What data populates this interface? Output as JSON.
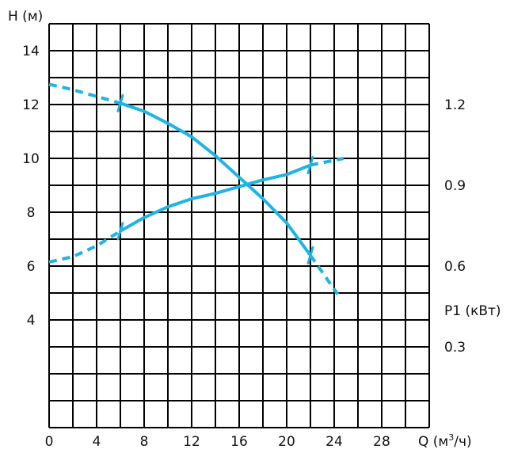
{
  "chart_data": {
    "type": "line",
    "colors": {
      "curve": "#1eb4e6",
      "grid": "#000000"
    },
    "grid": true,
    "x_axis": {
      "label": "Q (м³/ч)",
      "label_prefix": "Q (м",
      "label_sup": "3",
      "label_suffix": "/ч)",
      "range": [
        0,
        32
      ],
      "ticks": [
        0,
        4,
        8,
        12,
        16,
        20,
        24,
        28
      ]
    },
    "y_axis_left": {
      "label": "H (м)",
      "range": [
        0,
        15
      ],
      "ticks": [
        4,
        6,
        8,
        10,
        12,
        14
      ]
    },
    "y_axis_right": {
      "label": "P1 (кВт)",
      "range": [
        0,
        1.5
      ],
      "ticks": [
        0.3,
        0.6,
        0.9,
        1.2
      ]
    },
    "series": [
      {
        "axis": "left",
        "operating_range": [
          6,
          22
        ],
        "points": [
          [
            0,
            12.75
          ],
          [
            2,
            12.55
          ],
          [
            4,
            12.3
          ],
          [
            6,
            12.05
          ],
          [
            8,
            11.75
          ],
          [
            10,
            11.3
          ],
          [
            12,
            10.8
          ],
          [
            14,
            10.1
          ],
          [
            16,
            9.3
          ],
          [
            18,
            8.5
          ],
          [
            20,
            7.6
          ],
          [
            22,
            6.4
          ],
          [
            24.3,
            4.95
          ]
        ]
      },
      {
        "axis": "right",
        "operating_range": [
          6,
          22
        ],
        "points": [
          [
            0,
            0.615
          ],
          [
            2,
            0.635
          ],
          [
            4,
            0.675
          ],
          [
            6,
            0.73
          ],
          [
            8,
            0.78
          ],
          [
            10,
            0.82
          ],
          [
            12,
            0.85
          ],
          [
            14,
            0.87
          ],
          [
            16,
            0.895
          ],
          [
            18,
            0.92
          ],
          [
            20,
            0.94
          ],
          [
            22,
            0.975
          ],
          [
            24.8,
            1.0
          ]
        ]
      }
    ]
  }
}
